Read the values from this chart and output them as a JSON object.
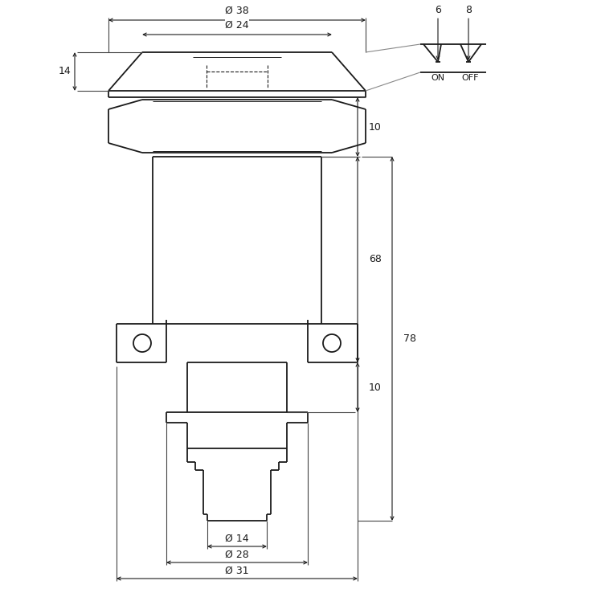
{
  "bg_color": "#ffffff",
  "line_color": "#1a1a1a",
  "fig_width": 7.33,
  "fig_height": 7.33,
  "dpi": 100,
  "annotations": {
    "phi38": "Ø 38",
    "phi24": "Ø 24",
    "phi14": "Ø 14",
    "phi28": "Ø 28",
    "phi31": "Ø 31",
    "dim_14": "14",
    "dim_10_top": "10",
    "dim_10_bot": "10",
    "dim_68": "68",
    "dim_78": "78",
    "dim_6": "6",
    "dim_8": "8",
    "on_label": "ON",
    "off_label": "OFF"
  }
}
